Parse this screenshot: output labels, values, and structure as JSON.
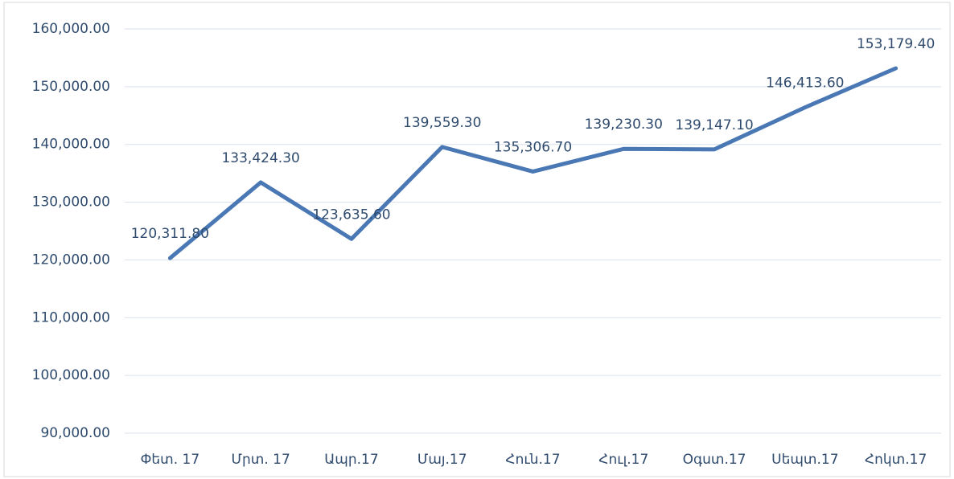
{
  "chart_data": {
    "type": "line",
    "categories": [
      "Փետ. 17",
      "Մրտ. 17",
      "Ապր.17",
      "Մայ.17",
      "Հուն.17",
      "Հուլ.17",
      "Օգստ.17",
      "Սեպտ.17",
      "Հոկտ.17"
    ],
    "values": [
      120311.8,
      133424.3,
      123635.6,
      139559.3,
      135306.7,
      139230.3,
      139147.1,
      146413.6,
      153179.4
    ],
    "value_labels": [
      "120,311.80",
      "133,424.30",
      "123,635.60",
      "139,559.30",
      "135,306.70",
      "139,230.30",
      "139,147.10",
      "146,413.60",
      "153,179.40"
    ],
    "color": "#4a78b4",
    "ylim": [
      90000,
      160000
    ],
    "yticks": [
      {
        "value": 90000,
        "label": "90,000.00"
      },
      {
        "value": 100000,
        "label": "100,000.00"
      },
      {
        "value": 110000,
        "label": "110,000.00"
      },
      {
        "value": 120000,
        "label": "120,000.00"
      },
      {
        "value": 130000,
        "label": "130,000.00"
      },
      {
        "value": 140000,
        "label": "140,000.00"
      },
      {
        "value": 150000,
        "label": "150,000.00"
      },
      {
        "value": 160000,
        "label": "160,000.00"
      }
    ],
    "grid": true
  }
}
